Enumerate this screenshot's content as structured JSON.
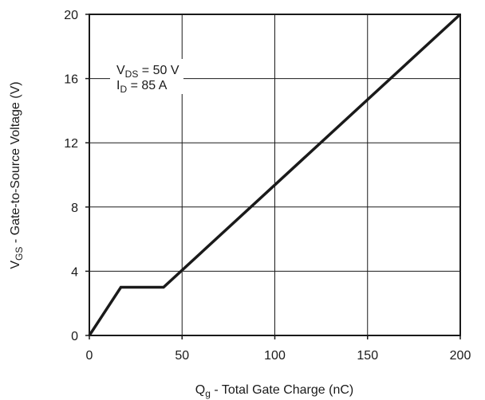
{
  "chart_data": {
    "type": "line",
    "title": "",
    "xlabel": {
      "main": "Q",
      "sub": "g",
      "rest": " - Total Gate Charge (nC)"
    },
    "ylabel": {
      "main": "V",
      "sub": "GS",
      "rest": " - Gate-to-Source Voltage (V)"
    },
    "xlim": [
      0,
      200
    ],
    "ylim": [
      0,
      20
    ],
    "xticks": [
      0,
      50,
      100,
      150,
      200
    ],
    "yticks": [
      0,
      4,
      8,
      12,
      16,
      20
    ],
    "grid": true,
    "series": [
      {
        "x": [
          0,
          17,
          40,
          200
        ],
        "y": [
          0,
          3,
          3,
          20
        ]
      }
    ],
    "annotations": [
      {
        "main": "V",
        "sub": "DS",
        "rest": " = 50 V"
      },
      {
        "main": "I",
        "sub": "D",
        "rest": " = 85 A"
      }
    ]
  }
}
